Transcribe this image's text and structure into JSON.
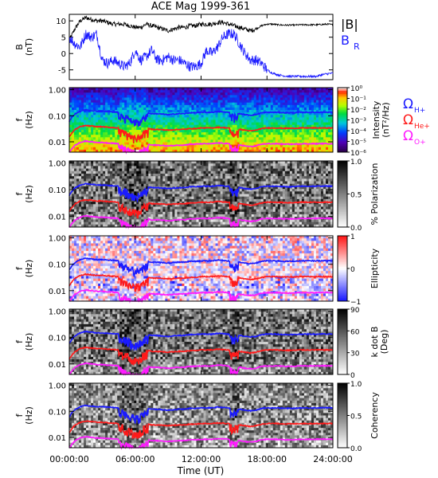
{
  "title": "ACE Mag 1999-361",
  "xlabel": "Time (UT)",
  "x_ticks": [
    "00:00:00",
    "06:00:00",
    "12:00:00",
    "18:00:00",
    "24:00:00"
  ],
  "x_range_hours": [
    0,
    24
  ],
  "freq_axis": {
    "label_line1": "f",
    "label_line2": "(Hz)",
    "ticks": [
      "1.00",
      "0.10",
      "0.01"
    ],
    "tick_values": [
      1.0,
      0.1,
      0.01
    ],
    "range": [
      0.004,
      1.2
    ],
    "scale": "log"
  },
  "colors": {
    "B_total": "#000000",
    "B_R": "#1a1aff",
    "H_plus": "#1a1aff",
    "He_plus": "#ff1a1a",
    "O_plus": "#ff1aff"
  },
  "chart_data": [
    {
      "type": "line",
      "panel": "field",
      "ylabel_line1": "B",
      "ylabel_line2": "(nT)",
      "yticks": [
        10,
        5,
        0,
        -5
      ],
      "ylim": [
        -8,
        12
      ],
      "legend": [
        "|B|",
        "B",
        "R"
      ],
      "x_hours": [
        0,
        0.5,
        1,
        1.5,
        2,
        2.5,
        3,
        3.5,
        4,
        4.5,
        5,
        5.5,
        6,
        6.5,
        7,
        7.5,
        8,
        8.5,
        9,
        9.5,
        10,
        10.5,
        11,
        11.5,
        12,
        12.5,
        13,
        13.5,
        14,
        14.5,
        15,
        15.5,
        16,
        16.5,
        17,
        17.5,
        18,
        18.5,
        19,
        19.5,
        20,
        20.5,
        21,
        21.5,
        22,
        22.5,
        23,
        23.5,
        24
      ],
      "series": [
        {
          "name": "|B|",
          "values": [
            4,
            7.5,
            10,
            11,
            10.5,
            10,
            10,
            9.5,
            9,
            9,
            9,
            8.5,
            8,
            8,
            9,
            8.5,
            8,
            7.5,
            7,
            7.5,
            8,
            8,
            8.5,
            8.5,
            9,
            9,
            9,
            9.5,
            9.5,
            9,
            8.5,
            8,
            7.5,
            7,
            7.5,
            8.5,
            9,
            9,
            8.8,
            8.7,
            8.7,
            8.7,
            8.8,
            8.8,
            8.8,
            8.8,
            8.9,
            9,
            8.8
          ]
        },
        {
          "name": "B_R",
          "values": [
            5,
            3,
            2,
            6,
            5,
            6,
            -2,
            -3,
            -2,
            -3,
            -4,
            -3,
            1,
            -2,
            -1,
            1,
            -2,
            -2,
            -1,
            -2,
            -2,
            -3,
            -4,
            -4,
            -3,
            1,
            0,
            2,
            5,
            6,
            6,
            3,
            0,
            -2,
            -2,
            -3,
            -5,
            -6,
            -6.5,
            -6.8,
            -7,
            -7,
            -7,
            -7,
            -7,
            -7,
            -6.5,
            -6.2,
            -6
          ]
        }
      ]
    },
    {
      "type": "heatmap",
      "panel": "intensity",
      "colorbar_label": "Intensity",
      "colorbar_unit": "(nT²/Hz)",
      "colorbar_ticks": [
        "10⁰",
        "10⁻¹",
        "10⁻²",
        "10⁻³",
        "10⁻⁴",
        "10⁻⁵",
        "10⁻⁶"
      ],
      "colorbar_range_log10": [
        -6,
        0
      ],
      "gyro_legend": [
        {
          "name": "Ω",
          "sub": "H+",
          "color": "#1a1aff"
        },
        {
          "name": "Ω",
          "sub": "He+",
          "color": "#ff1a1a"
        },
        {
          "name": "Ω",
          "sub": "O+",
          "color": "#ff1aff"
        }
      ]
    },
    {
      "type": "heatmap",
      "panel": "polarization",
      "colorbar_label": "% Polarization",
      "colorbar_ticks": [
        "1.0",
        "0.5",
        "0.0"
      ],
      "colorbar_range": [
        0,
        1
      ]
    },
    {
      "type": "heatmap",
      "panel": "ellipticity",
      "colorbar_label": "Ellipticity",
      "colorbar_ticks": [
        "1",
        "0",
        "−1"
      ],
      "colorbar_range": [
        -1,
        1
      ]
    },
    {
      "type": "heatmap",
      "panel": "kdotb",
      "colorbar_label": "k dot B",
      "colorbar_unit": "(Deg)",
      "colorbar_ticks": [
        "90",
        "60",
        "30",
        "0"
      ],
      "colorbar_range": [
        0,
        90
      ]
    },
    {
      "type": "heatmap",
      "panel": "coherency",
      "colorbar_label": "Coherency",
      "colorbar_ticks": [
        "1.0",
        "0.5",
        "0.0"
      ],
      "colorbar_range": [
        0,
        1
      ]
    },
    {
      "type": "line",
      "panel": "gyrofrequencies",
      "x_hours": [
        0,
        0.5,
        1,
        1.5,
        2,
        2.5,
        3,
        3.5,
        4,
        4.5,
        5,
        5.5,
        6,
        6.5,
        7,
        7.5,
        8,
        8.5,
        9,
        9.5,
        10,
        10.5,
        11,
        11.5,
        12,
        12.5,
        13,
        13.5,
        14,
        14.5,
        15,
        15.5,
        16,
        16.5,
        17,
        17.5,
        18,
        18.5,
        19,
        19.5,
        20,
        20.5,
        21,
        21.5,
        22,
        22.5,
        23,
        23.5,
        24
      ],
      "series": [
        {
          "name": "H+",
          "values": [
            0.06,
            0.115,
            0.15,
            0.17,
            0.16,
            0.15,
            0.15,
            0.145,
            0.14,
            0.135,
            0.11,
            0.09,
            0.07,
            0.08,
            0.13,
            0.12,
            0.12,
            0.115,
            0.11,
            0.115,
            0.12,
            0.12,
            0.13,
            0.13,
            0.135,
            0.135,
            0.135,
            0.145,
            0.14,
            0.135,
            0.11,
            0.12,
            0.11,
            0.105,
            0.11,
            0.13,
            0.135,
            0.135,
            0.135,
            0.13,
            0.13,
            0.13,
            0.135,
            0.135,
            0.135,
            0.135,
            0.137,
            0.137,
            0.135
          ]
        },
        {
          "name": "He+",
          "values": [
            0.015,
            0.029,
            0.038,
            0.042,
            0.04,
            0.038,
            0.038,
            0.036,
            0.035,
            0.034,
            0.028,
            0.022,
            0.018,
            0.02,
            0.033,
            0.03,
            0.03,
            0.029,
            0.028,
            0.029,
            0.03,
            0.03,
            0.032,
            0.032,
            0.034,
            0.034,
            0.034,
            0.036,
            0.035,
            0.034,
            0.028,
            0.03,
            0.028,
            0.026,
            0.028,
            0.032,
            0.034,
            0.034,
            0.034,
            0.033,
            0.033,
            0.033,
            0.034,
            0.034,
            0.034,
            0.034,
            0.034,
            0.034,
            0.034
          ]
        },
        {
          "name": "O+",
          "values": [
            0.0038,
            0.0072,
            0.0094,
            0.0106,
            0.01,
            0.0094,
            0.0094,
            0.009,
            0.0088,
            0.0084,
            0.0069,
            0.0056,
            0.0044,
            0.005,
            0.0081,
            0.0075,
            0.0075,
            0.0072,
            0.0069,
            0.0072,
            0.0075,
            0.0075,
            0.0081,
            0.0081,
            0.0084,
            0.0084,
            0.0084,
            0.009,
            0.0088,
            0.0084,
            0.0069,
            0.0075,
            0.0069,
            0.0066,
            0.0069,
            0.0081,
            0.0084,
            0.0084,
            0.0084,
            0.0081,
            0.0081,
            0.0081,
            0.0084,
            0.0084,
            0.0084,
            0.0084,
            0.0085,
            0.0085,
            0.0084
          ]
        }
      ]
    }
  ]
}
